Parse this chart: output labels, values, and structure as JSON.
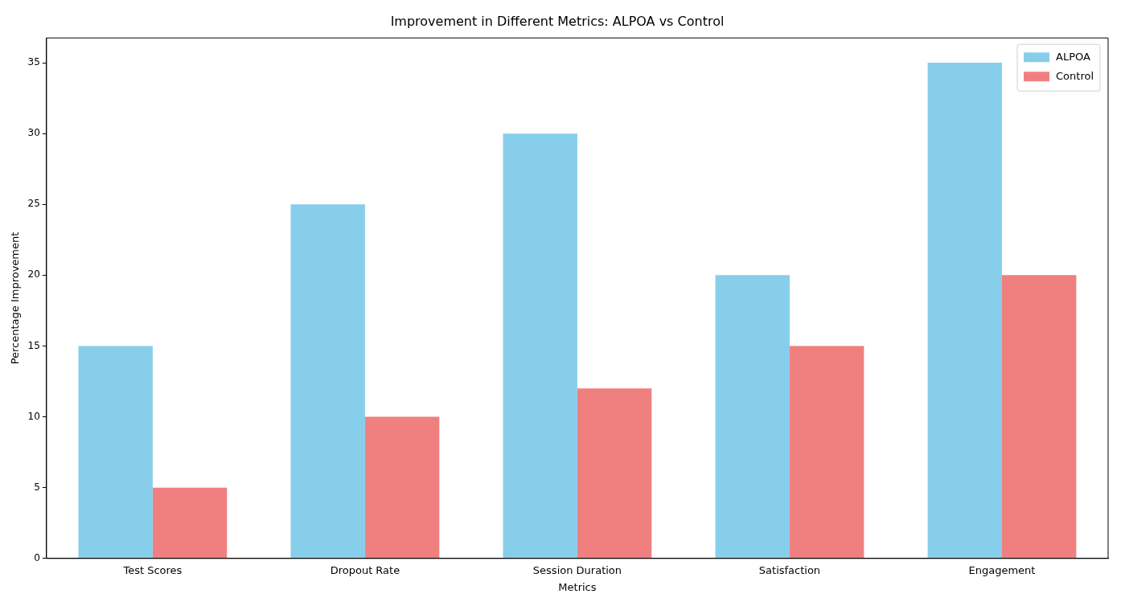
{
  "chart_data": {
    "type": "bar",
    "title": "Improvement in Different Metrics: ALPOA vs Control",
    "xlabel": "Metrics",
    "ylabel": "Percentage Improvement",
    "categories": [
      "Test Scores",
      "Dropout Rate",
      "Session Duration",
      "Satisfaction",
      "Engagement"
    ],
    "series": [
      {
        "name": "ALPOA",
        "color": "#87ceeb",
        "values": [
          15,
          25,
          30,
          20,
          35
        ]
      },
      {
        "name": "Control",
        "color": "#f08080",
        "values": [
          5,
          10,
          12,
          15,
          20
        ]
      }
    ],
    "ylim": [
      0,
      36.75
    ],
    "yticks": [
      0,
      5,
      10,
      15,
      20,
      25,
      30,
      35
    ],
    "grid": false,
    "legend": "top right"
  }
}
